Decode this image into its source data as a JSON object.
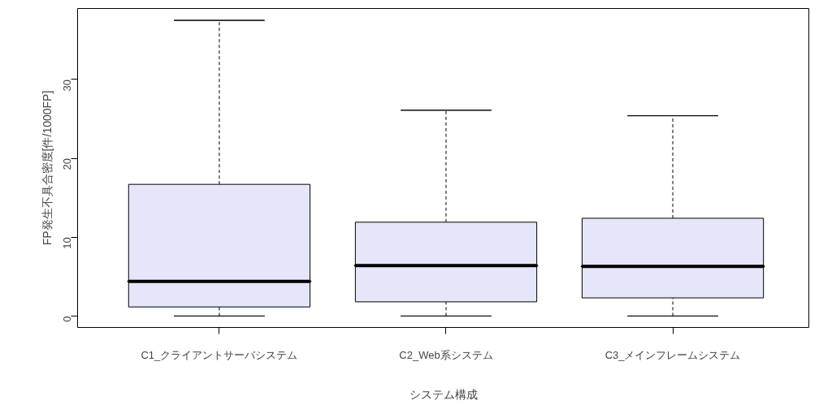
{
  "chart_data": {
    "type": "box",
    "xlabel": "システム構成",
    "ylabel": "FP発生不具合密度[件/1000FP]",
    "categories": [
      "C1_クライアントサーバシステム",
      "C2_Web系システム",
      "C3_メインフレームシステム"
    ],
    "ylim": [
      -1.45,
      39.0
    ],
    "yticks": [
      0,
      10,
      20,
      30
    ],
    "grid": false,
    "series": [
      {
        "color": "#e6e6fa",
        "boxes": [
          {
            "low": 0,
            "q1": 1.15,
            "median": 4.4,
            "q3": 16.7,
            "high": 37.5
          },
          {
            "low": 0,
            "q1": 1.8,
            "median": 6.4,
            "q3": 11.9,
            "high": 26.1
          },
          {
            "low": 0,
            "q1": 2.3,
            "median": 6.3,
            "q3": 12.4,
            "high": 25.4
          }
        ]
      }
    ]
  }
}
